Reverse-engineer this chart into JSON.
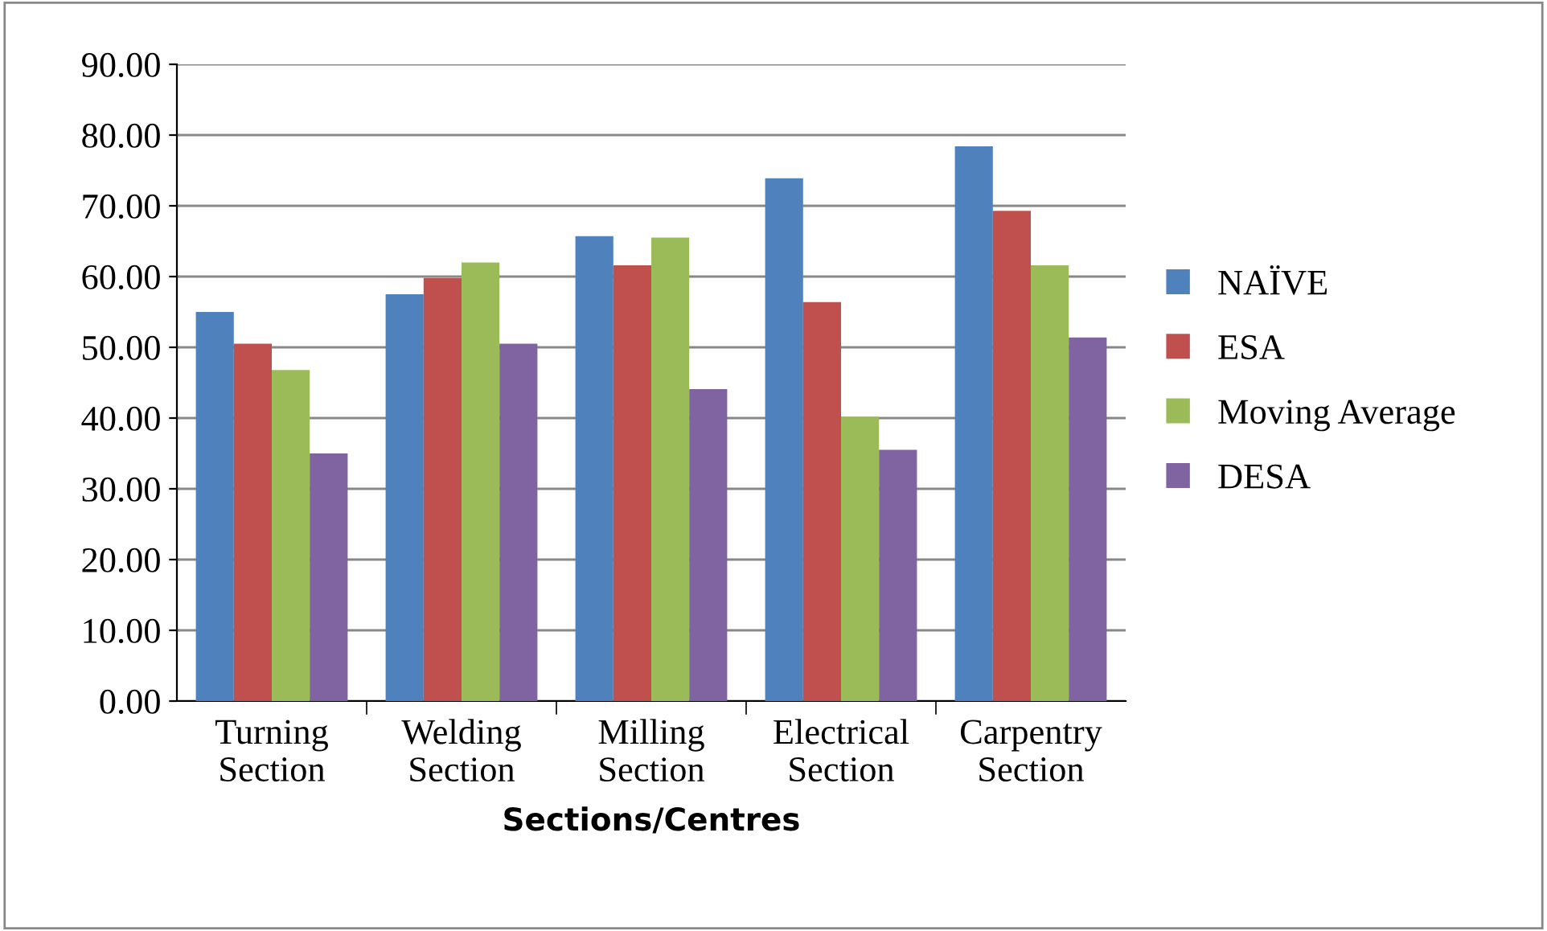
{
  "chart_data": {
    "type": "bar",
    "xlabel": "Sections/Centres",
    "categories": [
      "Turning\nSection",
      "Welding\nSection",
      "Milling\nSection",
      "Electrical\nSection",
      "Carpentry\nSection"
    ],
    "series": [
      {
        "name": "NAÏVE",
        "color": "#4f81bd",
        "values": [
          55.0,
          57.5,
          65.7,
          73.9,
          78.4
        ]
      },
      {
        "name": "ESA",
        "color": "#c0504d",
        "values": [
          50.5,
          59.8,
          61.6,
          56.4,
          69.3
        ]
      },
      {
        "name": "Moving Average",
        "color": "#9bbb59",
        "values": [
          46.8,
          62.0,
          65.5,
          40.2,
          61.6
        ]
      },
      {
        "name": "DESA",
        "color": "#8064a2",
        "values": [
          35.0,
          50.5,
          44.1,
          35.5,
          51.4
        ]
      }
    ],
    "ylim": [
      0,
      90
    ],
    "yticks": [
      {
        "value": 0,
        "label": "0.00"
      },
      {
        "value": 10,
        "label": "10.00"
      },
      {
        "value": 20,
        "label": "20.00"
      },
      {
        "value": 30,
        "label": "30.00"
      },
      {
        "value": 40,
        "label": "40.00"
      },
      {
        "value": 50,
        "label": "50.00"
      },
      {
        "value": 60,
        "label": "60.00"
      },
      {
        "value": 70,
        "label": "70.00"
      },
      {
        "value": 80,
        "label": "80.00"
      },
      {
        "value": 90,
        "label": "90.00"
      }
    ],
    "grid": "y",
    "legend": "right"
  }
}
